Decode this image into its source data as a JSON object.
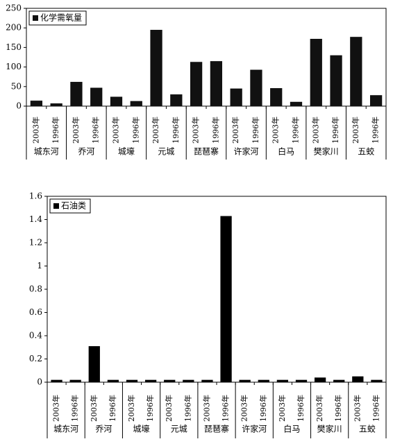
{
  "chart_data": [
    {
      "type": "bar",
      "categories": [
        "2003年",
        "1996年",
        "2003年",
        "1996年",
        "2003年",
        "1996年",
        "2003年",
        "1996年",
        "2003年",
        "1996年",
        "2003年",
        "1996年",
        "2003年",
        "1996年",
        "2003年",
        "1996年",
        "2003年",
        "1996年"
      ],
      "groups": [
        "城东河",
        "乔河",
        "城壕",
        "元城",
        "琵琶寨",
        "许家河",
        "白马",
        "樊家川",
        "五蛟"
      ],
      "series": [
        {
          "name": "化学需氧量",
          "color": "#111111",
          "values": [
            14,
            7,
            62,
            47,
            24,
            13,
            195,
            30,
            113,
            115,
            45,
            93,
            46,
            11,
            172,
            130,
            177,
            28
          ]
        }
      ],
      "ylim": [
        0,
        250
      ],
      "yticks": [
        0,
        50,
        100,
        150,
        200,
        250
      ],
      "legend": "top-left"
    },
    {
      "type": "bar",
      "categories": [
        "2003年",
        "1996年",
        "2003年",
        "1996年",
        "2003年",
        "1996年",
        "2003年",
        "1996年",
        "2003年",
        "1996年",
        "2003年",
        "1996年",
        "2003年",
        "1996年",
        "2003年",
        "1996年",
        "2003年",
        "1996年"
      ],
      "groups": [
        "城东河",
        "乔河",
        "城壕",
        "元城",
        "琵琶寨",
        "许家河",
        "白马",
        "樊家川",
        "五蛟"
      ],
      "series": [
        {
          "name": "石油类",
          "color": "#000000",
          "values": [
            0.02,
            0.02,
            0.31,
            0.02,
            0.02,
            0.02,
            0.02,
            0.02,
            0.02,
            1.43,
            0.02,
            0.02,
            0.02,
            0.02,
            0.04,
            0.02,
            0.05,
            0.02
          ]
        }
      ],
      "ylim": [
        0,
        1.6
      ],
      "yticks": [
        0,
        0.2,
        0.4,
        0.6,
        0.8,
        1,
        1.2,
        1.4,
        1.6
      ],
      "legend": "top-left"
    }
  ]
}
